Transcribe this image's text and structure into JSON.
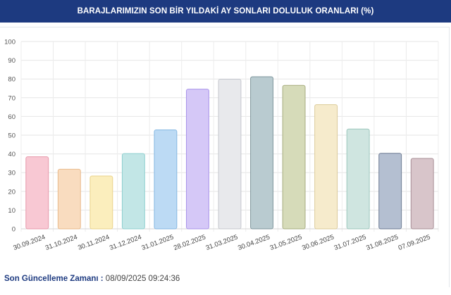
{
  "header": {
    "title": "BARAJLARIMIZIN SON BİR YILDAKİ AY SONLARI DOLULUK ORANLARI (%)",
    "color": "#1d3a80"
  },
  "footer": {
    "label": "Son Güncelleme Zamanı :",
    "value": "08/09/2025 09:24:36"
  },
  "chart_data": {
    "type": "bar",
    "title": "",
    "xlabel": "",
    "ylabel": "",
    "ylim": [
      0,
      100
    ],
    "yticks": [
      0,
      10,
      20,
      30,
      40,
      50,
      60,
      70,
      80,
      90,
      100
    ],
    "grid": true,
    "categories": [
      "30.09.2024",
      "31.10.2024",
      "30.11.2024",
      "31.12.2024",
      "31.01.2025",
      "28.02.2025",
      "31.03.2025",
      "30.04.2025",
      "31.05.2025",
      "30.06.2025",
      "31.07.2025",
      "31.08.2025",
      "07.09.2025"
    ],
    "values": [
      38.5,
      31.8,
      28.2,
      40.2,
      52.8,
      74.6,
      79.9,
      81.2,
      76.6,
      66.3,
      53.3,
      40.3,
      37.6
    ],
    "colors": [
      {
        "fill": "#f8c8d3",
        "stroke": "#e799ab"
      },
      {
        "fill": "#f9dcbf",
        "stroke": "#e9b98a"
      },
      {
        "fill": "#fbeebd",
        "stroke": "#ead38a"
      },
      {
        "fill": "#c2e6e6",
        "stroke": "#8fcfcf"
      },
      {
        "fill": "#bcdaf4",
        "stroke": "#84b7e2"
      },
      {
        "fill": "#d5c8f7",
        "stroke": "#a994ea"
      },
      {
        "fill": "#e8e9ec",
        "stroke": "#c5c8ce"
      },
      {
        "fill": "#b9cbd0",
        "stroke": "#7f969d"
      },
      {
        "fill": "#d6dbb9",
        "stroke": "#a7ad7f"
      },
      {
        "fill": "#f6ebcc",
        "stroke": "#dccb9a"
      },
      {
        "fill": "#cfe5e0",
        "stroke": "#9cc7bd"
      },
      {
        "fill": "#b4bfd1",
        "stroke": "#6d7b93"
      },
      {
        "fill": "#d8c5ca",
        "stroke": "#a98f97"
      }
    ]
  }
}
